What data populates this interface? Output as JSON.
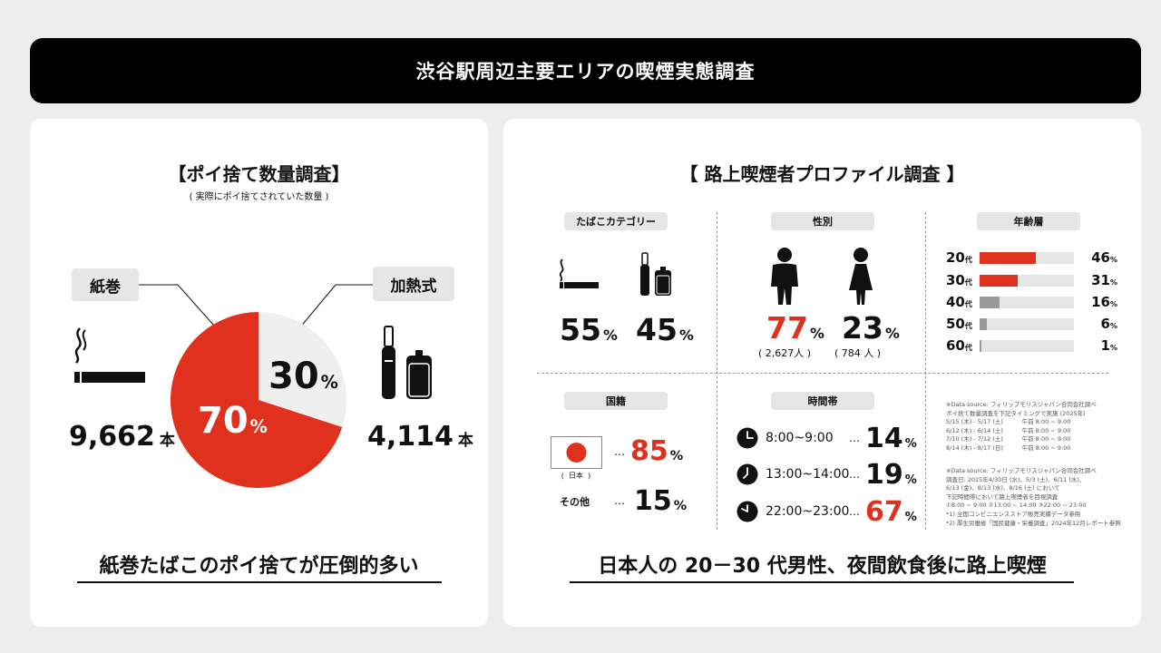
{
  "header": {
    "title": "渋谷駅周辺主要エリアの喫煙実態調査"
  },
  "left": {
    "title": "【ポイ捨て数量調査】",
    "subtitle": "( 実際にポイ捨てされていた数量 )",
    "label_paper": "紙巻",
    "label_heated": "加熱式",
    "count_paper": "9,662",
    "count_heated": "4,114",
    "count_unit": "本",
    "pct_paper": "70",
    "pct_heated": "30",
    "pct_unit": "%",
    "conclusion": "紙巻たばこのポイ捨てが圧倒的多い"
  },
  "chart_data": [
    {
      "type": "pie",
      "title": "ポイ捨て数量調査",
      "categories": [
        "紙巻",
        "加熱式"
      ],
      "values": [
        70,
        30
      ],
      "counts": [
        9662,
        4114
      ],
      "colors": [
        "#e0301e",
        "#efefef"
      ]
    },
    {
      "type": "bar",
      "title": "年齢層",
      "categories": [
        "20代",
        "30代",
        "40代",
        "50代",
        "60代"
      ],
      "values": [
        46,
        31,
        16,
        6,
        1
      ],
      "xlim": [
        0,
        100
      ],
      "colors": [
        "#e0301e",
        "#e0301e",
        "#9a9a9a",
        "#9a9a9a",
        "#9a9a9a"
      ]
    }
  ],
  "right": {
    "title": "【 路上喫煙者プロファイル調査 】",
    "category": {
      "label": "たばこカテゴリー",
      "paper_pct": "55",
      "heated_pct": "45"
    },
    "gender": {
      "label": "性別",
      "male_pct": "77",
      "female_pct": "23",
      "male_count": "( 2,627人 )",
      "female_count": "( 784 人 )"
    },
    "age": {
      "label": "年齢層",
      "suffix": "代",
      "rows": [
        {
          "age": "20",
          "value": "46"
        },
        {
          "age": "30",
          "value": "31"
        },
        {
          "age": "40",
          "value": "16"
        },
        {
          "age": "50",
          "value": "6"
        },
        {
          "age": "60",
          "value": "1"
        }
      ]
    },
    "nationality": {
      "label": "国籍",
      "flag_caption": "(  日本  )",
      "japan_pct": "85",
      "other_label": "その他",
      "other_pct": "15"
    },
    "time": {
      "label": "時間帯",
      "rows": [
        {
          "range": "8:00~9:00",
          "value": "14"
        },
        {
          "range": "13:00~14:00",
          "value": "19"
        },
        {
          "range": "22:00~23:00",
          "value": "67"
        }
      ]
    },
    "dots": "…",
    "pct_unit": "%",
    "notes1": [
      "※Data source: フィリップモリスジャパン合同会社調べ",
      "ポイ捨て数量調査を下記タイミングで実施 (2025年)",
      "5/15 (木) - 5/17 (土)          午前 8:00 ~ 9:00",
      "6/12 (木) - 6/14 (土)          午前 8:00 ~ 9:00",
      "7/10 (木) - 7/12 (土)          午前 8:00 ~ 9:00",
      "8/14 (木) - 8/17 (日)          午前 8:00 ~ 9:00"
    ],
    "notes2": [
      "※Data source: フィリップモリスジャパン合同会社調べ",
      "調査日: 2025年4/30日 (水)、5/3 (土)、6/11 (水)、",
      "6/13 (金)、8/13 (水)、8/16 (土) において",
      "下記時間帯において路上喫煙者を目視調査",
      "①8:00 ~ 9:00 ②13:00 ~ 14:00 ③22:00 ~ 23:00",
      "*1) 全国コンビニエンスストア販売実績データ参照",
      "*2) 厚生労働省「国民健康・栄養調査」2024年12月レポート参照"
    ],
    "conclusion": "日本人の 20－30 代男性、夜間飲食後に路上喫煙"
  }
}
